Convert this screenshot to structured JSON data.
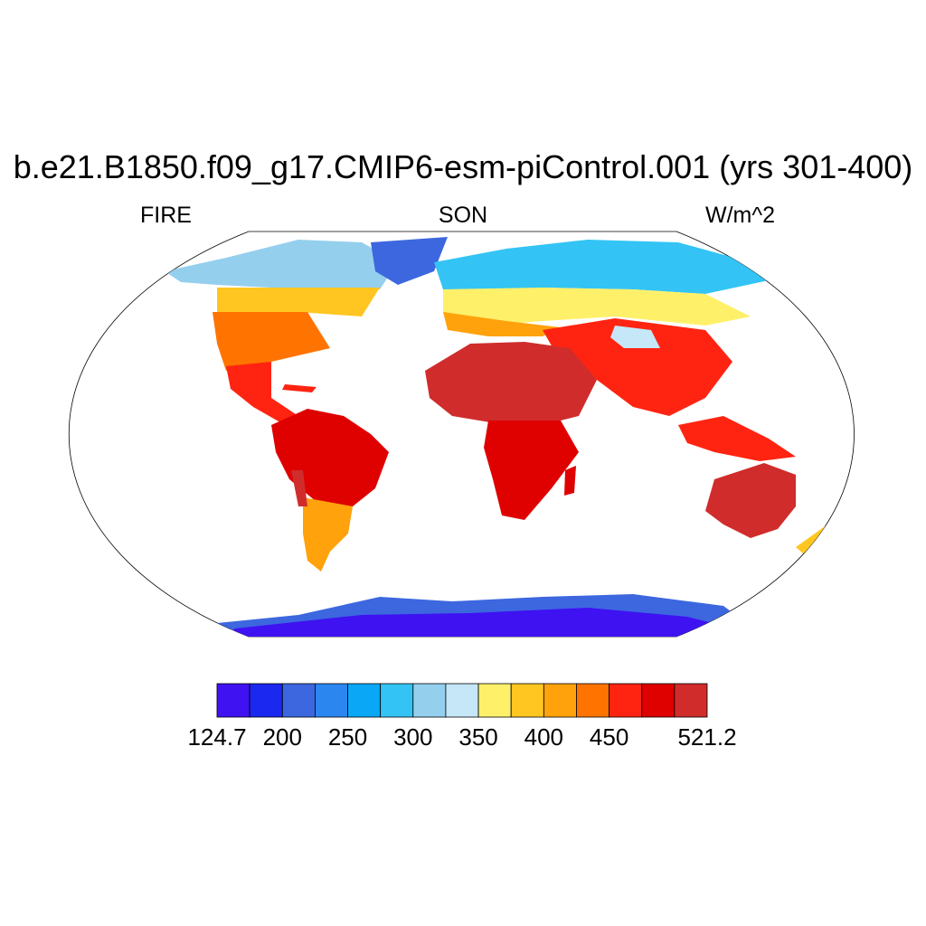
{
  "title": "b.e21.B1850.f09_g17.CMIP6-esm-piControl.001 (yrs 301-400)",
  "subtitle_left": "FIRE",
  "subtitle_center": "SON",
  "subtitle_right": "W/m^2",
  "colorbar": {
    "colors": [
      "#3f12f2",
      "#1b28f0",
      "#3c67df",
      "#2b86f0",
      "#0aa7f7",
      "#33c4f5",
      "#94cfee",
      "#c5e7f7",
      "#fff06a",
      "#ffc622",
      "#ffa20c",
      "#ff7400",
      "#ff2411",
      "#df0000",
      "#d02c2c"
    ],
    "labels": [
      "124.7",
      "200",
      "250",
      "300",
      "350",
      "400",
      "450",
      "521.2"
    ],
    "label_edges": [
      0,
      2,
      4,
      6,
      8,
      10,
      12,
      15
    ]
  }
}
